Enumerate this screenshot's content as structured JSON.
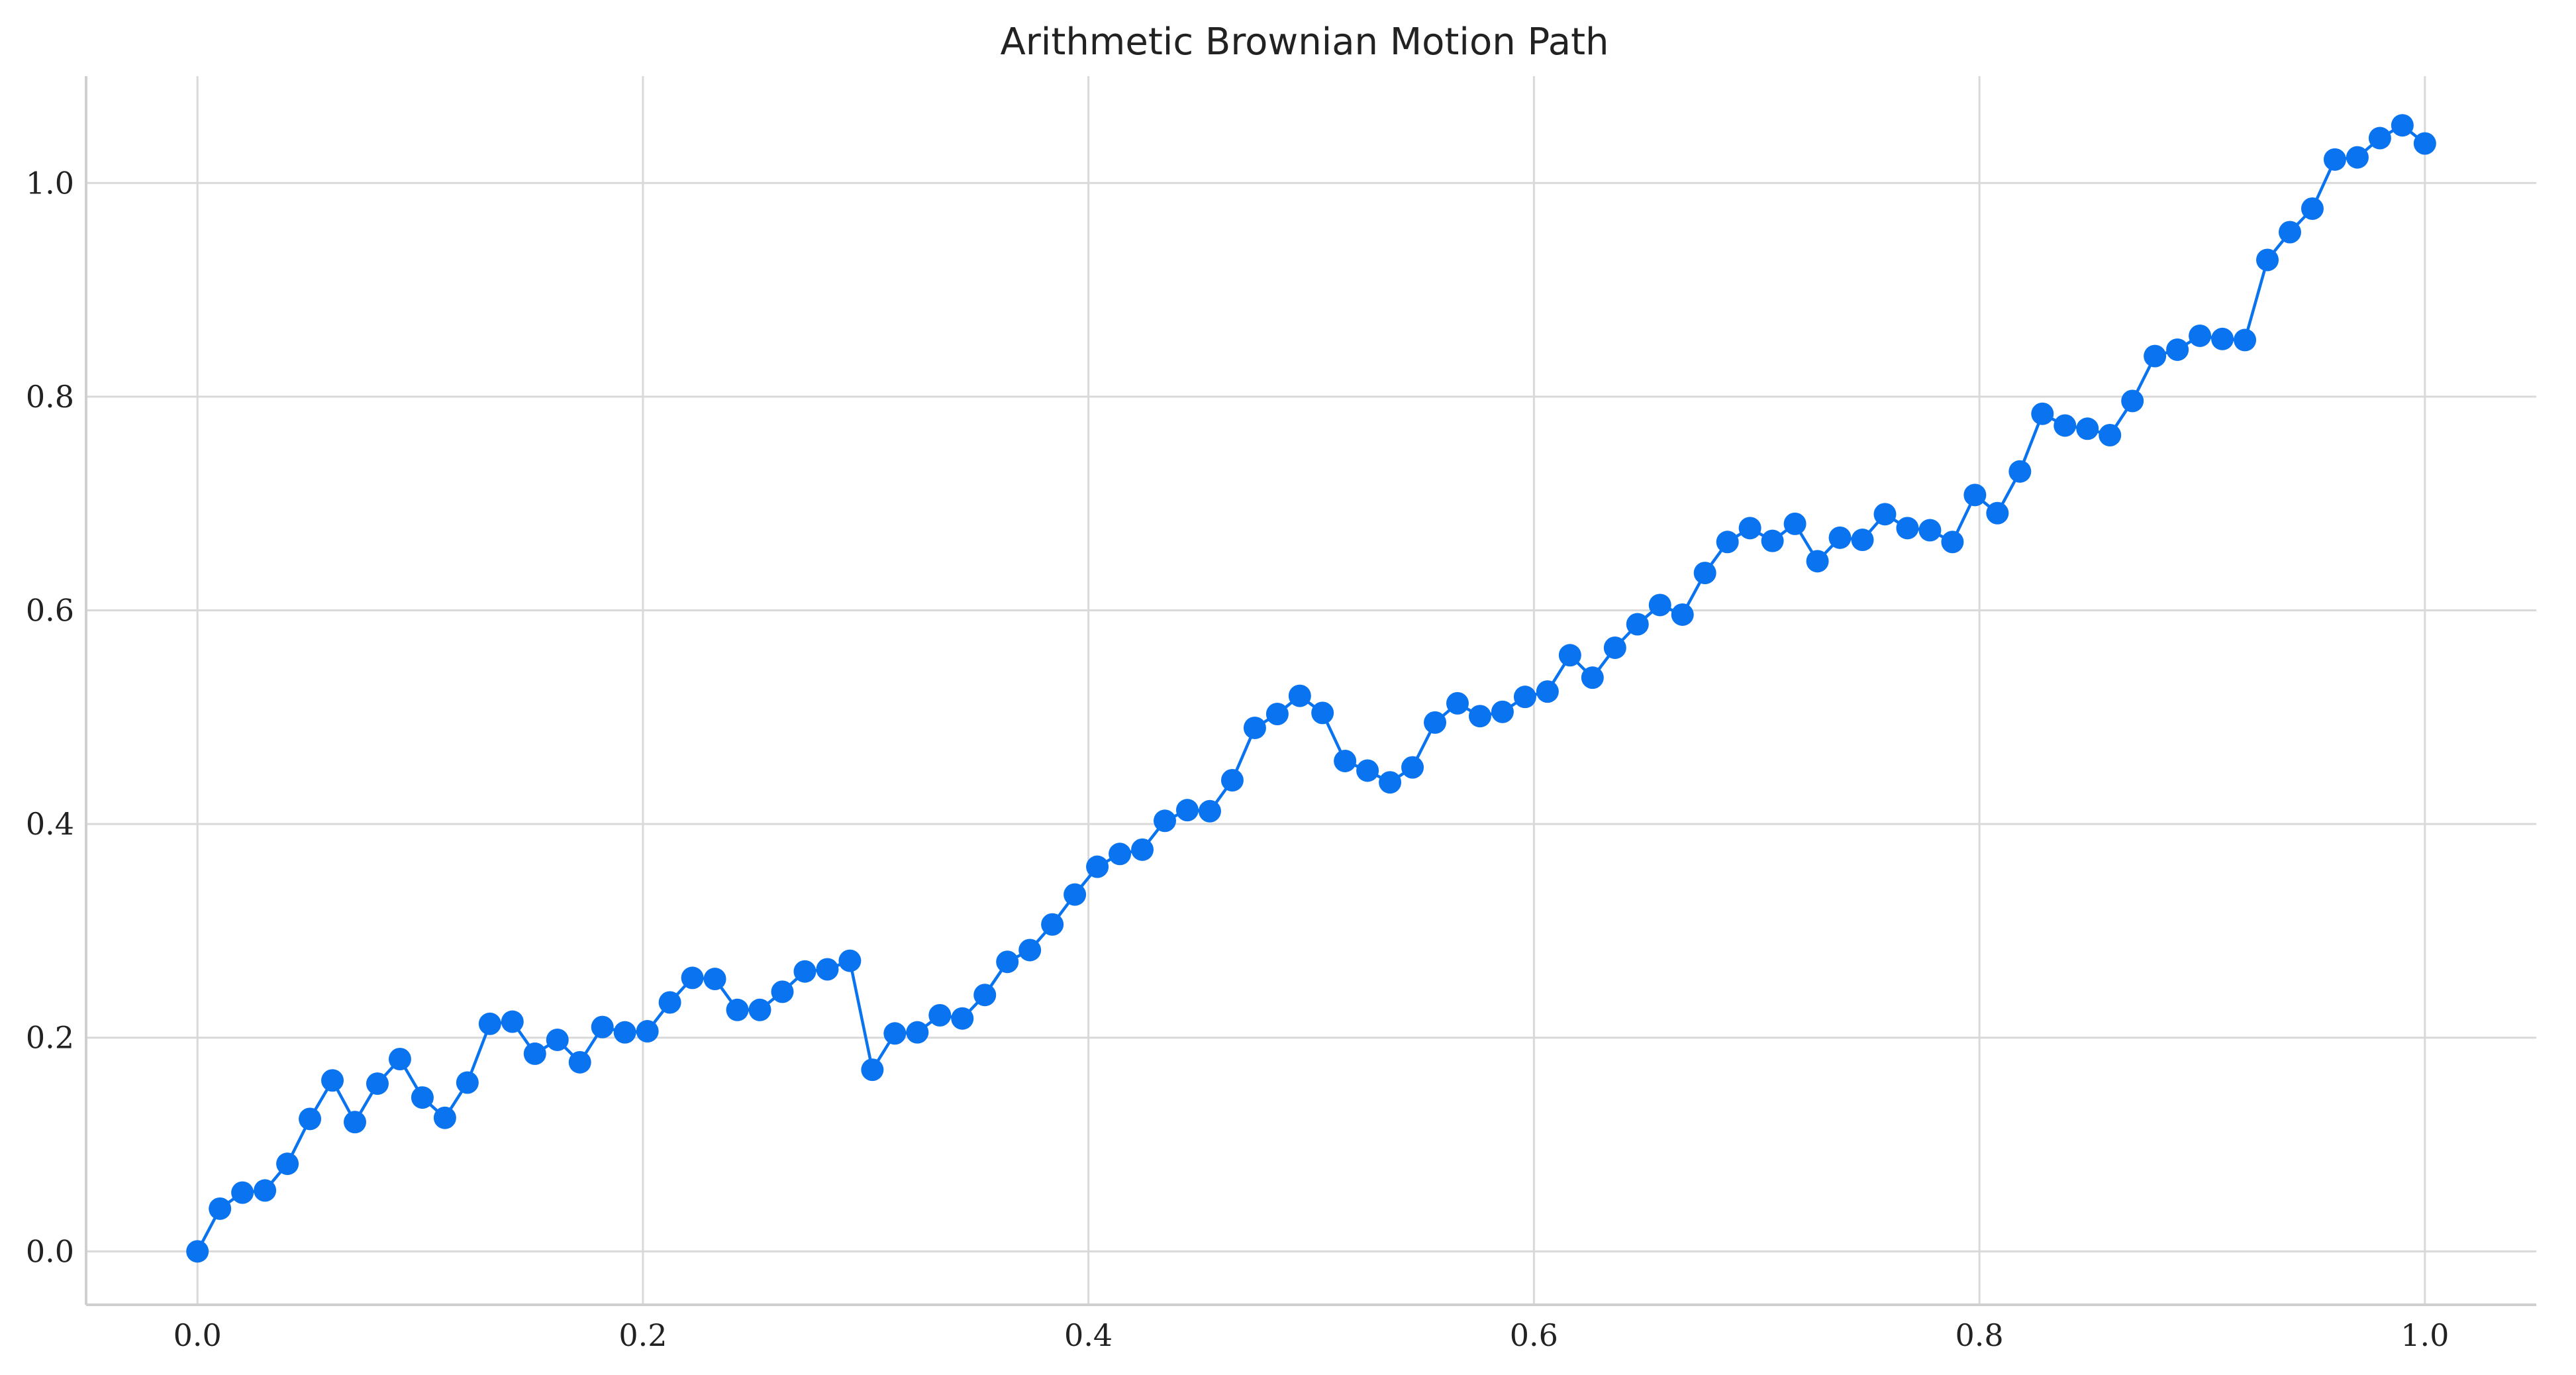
{
  "chart_data": {
    "type": "line",
    "title": "Arithmetic Brownian Motion Path",
    "xlabel": "",
    "ylabel": "",
    "xlim": [
      -0.05,
      1.05
    ],
    "ylim": [
      -0.05,
      1.1
    ],
    "x_ticks": [
      0.0,
      0.2,
      0.4,
      0.6,
      0.8,
      1.0
    ],
    "x_tick_labels": [
      "0.0",
      "0.2",
      "0.4",
      "0.6",
      "0.8",
      "1.0"
    ],
    "y_ticks": [
      0.0,
      0.2,
      0.4,
      0.6,
      0.8,
      1.0
    ],
    "y_tick_labels": [
      "0.0",
      "0.2",
      "0.4",
      "0.6",
      "0.8",
      "1.0"
    ],
    "grid": true,
    "legend": "none",
    "color": "#0a74f0",
    "series": [
      {
        "x": [
          0.0,
          0.0101,
          0.0202,
          0.0303,
          0.0404,
          0.0505,
          0.0606,
          0.0707,
          0.0808,
          0.0909,
          0.101,
          0.1111,
          0.1212,
          0.1313,
          0.1414,
          0.1515,
          0.1616,
          0.1717,
          0.1818,
          0.1919,
          0.202,
          0.2121,
          0.2222,
          0.2323,
          0.2424,
          0.2525,
          0.2626,
          0.2727,
          0.2828,
          0.2929,
          0.303,
          0.3131,
          0.3232,
          0.3333,
          0.3434,
          0.3535,
          0.3636,
          0.3737,
          0.3838,
          0.3939,
          0.404,
          0.4141,
          0.4242,
          0.4343,
          0.4444,
          0.4545,
          0.4646,
          0.4747,
          0.4848,
          0.4949,
          0.5051,
          0.5152,
          0.5253,
          0.5354,
          0.5455,
          0.5556,
          0.5657,
          0.5758,
          0.5859,
          0.596,
          0.6061,
          0.6162,
          0.6263,
          0.6364,
          0.6465,
          0.6566,
          0.6667,
          0.6768,
          0.6869,
          0.697,
          0.7071,
          0.7172,
          0.7273,
          0.7374,
          0.7475,
          0.7576,
          0.7677,
          0.7778,
          0.7879,
          0.798,
          0.8081,
          0.8182,
          0.8283,
          0.8384,
          0.8485,
          0.8586,
          0.8687,
          0.8788,
          0.8889,
          0.899,
          0.9091,
          0.9192,
          0.9293,
          0.9394,
          0.9495,
          0.9596,
          0.9697,
          0.9798,
          0.9899,
          1.0
        ],
        "y": [
          0.0,
          0.04,
          0.055,
          0.057,
          0.082,
          0.124,
          0.16,
          0.121,
          0.157,
          0.18,
          0.144,
          0.125,
          0.158,
          0.213,
          0.215,
          0.185,
          0.198,
          0.177,
          0.21,
          0.205,
          0.206,
          0.233,
          0.256,
          0.255,
          0.226,
          0.226,
          0.243,
          0.262,
          0.264,
          0.272,
          0.17,
          0.204,
          0.205,
          0.221,
          0.218,
          0.24,
          0.271,
          0.282,
          0.306,
          0.334,
          0.36,
          0.372,
          0.376,
          0.403,
          0.413,
          0.412,
          0.441,
          0.49,
          0.503,
          0.52,
          0.504,
          0.459,
          0.45,
          0.439,
          0.453,
          0.495,
          0.513,
          0.501,
          0.505,
          0.519,
          0.524,
          0.558,
          0.537,
          0.565,
          0.587,
          0.605,
          0.596,
          0.635,
          0.664,
          0.677,
          0.665,
          0.681,
          0.646,
          0.668,
          0.666,
          0.69,
          0.677,
          0.675,
          0.664,
          0.708,
          0.691,
          0.73,
          0.784,
          0.773,
          0.77,
          0.764,
          0.796,
          0.838,
          0.844,
          0.857,
          0.854,
          0.853,
          0.928,
          0.954,
          0.976,
          1.022,
          1.024,
          1.042,
          1.054,
          1.037
        ]
      }
    ]
  }
}
